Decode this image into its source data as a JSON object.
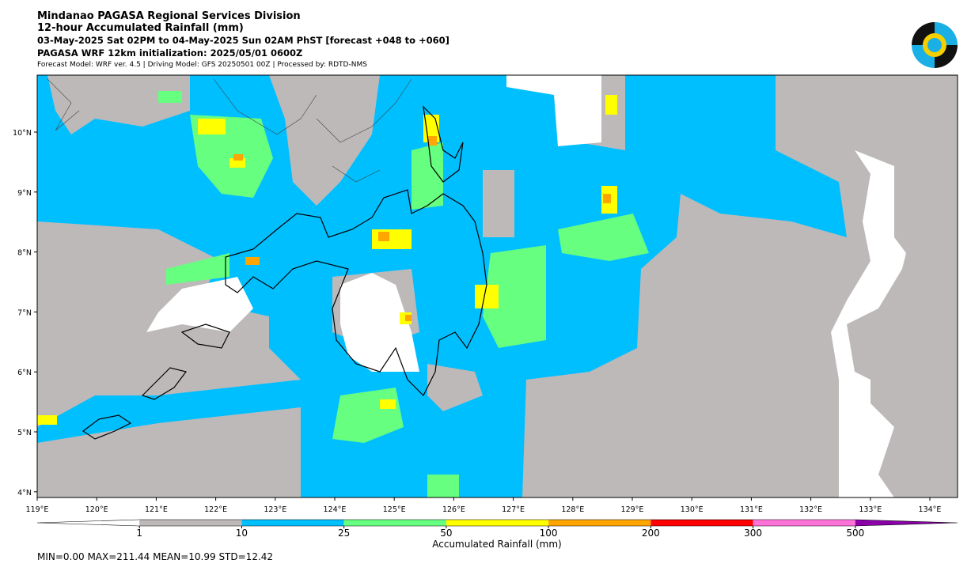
{
  "header": {
    "division": "Mindanao PAGASA Regional Services Division",
    "title": "12-hour Accumulated Rainfall (mm)",
    "period": "03-May-2025 Sat 02PM to 04-May-2025 Sun 02AM PhST [forecast +048 to +060]",
    "initialization": "PAGASA WRF 12km initialization: 2025/05/01 0600Z",
    "models": "Forecast Model: WRF ver. 4.5 | Driving Model: GFS 20250501 00Z | Processed by: RDTD-NMS"
  },
  "map": {
    "lon_ticks": [
      "119°E",
      "120°E",
      "121°E",
      "122°E",
      "123°E",
      "124°E",
      "125°E",
      "126°E",
      "127°E",
      "128°E",
      "129°E",
      "130°E",
      "131°E",
      "132°E",
      "133°E",
      "134°E"
    ],
    "lat_ticks": [
      "10°N",
      "9°N",
      "8°N",
      "7°N",
      "6°N",
      "5°N",
      "4°N"
    ]
  },
  "colorbar": {
    "labels": [
      "1",
      "10",
      "25",
      "50",
      "100",
      "200",
      "300",
      "500"
    ],
    "colors": [
      "#ffffff",
      "#bdb9b9",
      "#00bfff",
      "#66ff80",
      "#ffff00",
      "#ffa500",
      "#ff0000",
      "#ff73d9",
      "#8b00a8"
    ],
    "label": "Accumulated Rainfall (mm)"
  },
  "stats": "MIN=0.00   MAX=211.44   MEAN=10.99   STD=12.42"
}
